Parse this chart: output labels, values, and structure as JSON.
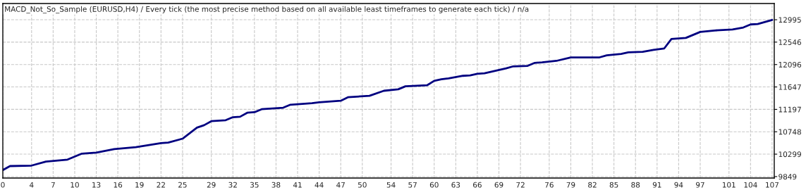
{
  "chart_data": {
    "type": "line",
    "title": "MACD_Not_So_Sample (EURUSD,H4) / Every tick (the most precise method based on all available least timeframes to generate each tick) / n/a",
    "series": [
      {
        "color": "#000080",
        "x": [
          0,
          1,
          4,
          6,
          9,
          11,
          13,
          15.5,
          18.5,
          22,
          23,
          25,
          27,
          28,
          29,
          31,
          32,
          33,
          34,
          35,
          36,
          39,
          40,
          43,
          44,
          47,
          48,
          51,
          53,
          55,
          56,
          59,
          60,
          61,
          62,
          64,
          65,
          66,
          67,
          70,
          71,
          73,
          74,
          75,
          77,
          79,
          83,
          84,
          86,
          87,
          89,
          90.5,
          92,
          93,
          95,
          97,
          99,
          101.5,
          103,
          104,
          105,
          107
        ],
        "values": [
          9980,
          10060,
          10070,
          10150,
          10190,
          10310,
          10330,
          10400,
          10440,
          10520,
          10530,
          10610,
          10830,
          10880,
          10960,
          10980,
          11040,
          11050,
          11130,
          11140,
          11200,
          11230,
          11290,
          11320,
          11340,
          11370,
          11440,
          11470,
          11570,
          11600,
          11660,
          11680,
          11770,
          11800,
          11820,
          11870,
          11880,
          11910,
          11920,
          12020,
          12060,
          12070,
          12130,
          12140,
          12170,
          12240,
          12240,
          12280,
          12310,
          12340,
          12350,
          12390,
          12420,
          12610,
          12630,
          12750,
          12780,
          12800,
          12840,
          12900,
          12910,
          12990
        ]
      }
    ],
    "xlim": [
      0,
      107.3
    ],
    "xticks": [
      0,
      4,
      7,
      10,
      13,
      16,
      19,
      22,
      25,
      29,
      32,
      35,
      38,
      41,
      44,
      47,
      50,
      54,
      57,
      60,
      63,
      66,
      69,
      72,
      76,
      79,
      82,
      85,
      88,
      91,
      94,
      97,
      101,
      104,
      107
    ],
    "ylim": [
      9820,
      13320
    ],
    "yticks": [
      9849,
      10299,
      10748,
      11197,
      11647,
      12096,
      12546,
      12995
    ],
    "grid": true,
    "legend": false,
    "marker": "none",
    "line_style": "solid"
  }
}
